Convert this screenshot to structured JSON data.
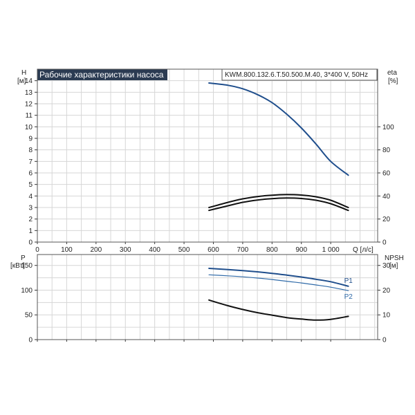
{
  "header": {
    "title": "Рабочие характеристики насоса",
    "model": "KWM.800.132.6.T.50.500.M.40, 3*400 V, 50Hz"
  },
  "colors": {
    "title_bg": "#2b3b52",
    "blue": "#1f4e8c",
    "blue_light": "#2f6aa8",
    "black": "#111111",
    "grid": "#d6d6d6"
  },
  "chart_data": [
    {
      "type": "line",
      "name": "top",
      "left_axis": {
        "label_1": "H",
        "label_2": "[м]",
        "ylim": [
          0,
          15
        ],
        "ticks": [
          "0",
          "1",
          "2",
          "3",
          "4",
          "5",
          "6",
          "7",
          "8",
          "9",
          "10",
          "11",
          "12",
          "13",
          "14"
        ],
        "tick_values": [
          0,
          1,
          2,
          3,
          4,
          5,
          6,
          7,
          8,
          9,
          10,
          11,
          12,
          13,
          14
        ]
      },
      "right_axis": {
        "label_1": "eta",
        "label_2": "[%]",
        "ylim": [
          0,
          150
        ],
        "ticks": [
          "0",
          "20",
          "40",
          "60",
          "80",
          "100"
        ],
        "tick_values": [
          0,
          20,
          40,
          60,
          80,
          100
        ]
      },
      "x_axis": {
        "label": "Q [л/с]",
        "xlim": [
          0,
          1160
        ],
        "ticks": [
          "0",
          "100",
          "200",
          "300",
          "400",
          "500",
          "600",
          "700",
          "800",
          "900",
          "1 000"
        ],
        "tick_values": [
          0,
          100,
          200,
          300,
          400,
          500,
          600,
          700,
          800,
          900,
          1000
        ]
      },
      "grid": true,
      "series": [
        {
          "axis": "left",
          "color": "blue",
          "x": [
            585,
            650,
            700,
            750,
            800,
            850,
            900,
            950,
            1000,
            1060
          ],
          "y": [
            13.8,
            13.6,
            13.3,
            12.8,
            12.1,
            11.1,
            9.9,
            8.5,
            7.0,
            5.8
          ]
        },
        {
          "axis": "right",
          "color": "black",
          "x": [
            585,
            650,
            700,
            750,
            800,
            850,
            900,
            950,
            1000,
            1060
          ],
          "y": [
            30,
            34.5,
            37.5,
            39.5,
            40.7,
            41.2,
            40.8,
            39.3,
            36.3,
            30
          ]
        },
        {
          "axis": "right",
          "color": "black",
          "x": [
            585,
            650,
            700,
            750,
            800,
            850,
            900,
            950,
            1000,
            1060
          ],
          "y": [
            27.5,
            31.5,
            34.5,
            36.5,
            37.7,
            38.2,
            37.8,
            36.3,
            33.3,
            27.5
          ]
        }
      ]
    },
    {
      "type": "line",
      "name": "bottom",
      "left_axis": {
        "label_1": "P",
        "label_2": "[кВт]",
        "ylim": [
          0,
          172
        ],
        "ticks": [
          "0",
          "50",
          "100",
          "150"
        ],
        "tick_values": [
          0,
          50,
          100,
          150
        ]
      },
      "right_axis": {
        "label_1": "NPSH",
        "label_2": "[м]",
        "ylim": [
          0,
          34.4
        ],
        "ticks": [
          "0",
          "10",
          "20",
          "30"
        ],
        "tick_values": [
          0,
          10,
          20,
          30
        ]
      },
      "x_axis": {
        "xlim": [
          0,
          1160
        ],
        "tick_values": [
          0,
          100,
          200,
          300,
          400,
          500,
          600,
          700,
          800,
          900,
          1000
        ]
      },
      "grid": true,
      "series": [
        {
          "axis": "left",
          "color": "blue",
          "name": "P1",
          "x": [
            585,
            650,
            700,
            750,
            800,
            850,
            900,
            950,
            1000,
            1060
          ],
          "y": [
            144,
            141.5,
            139.5,
            137,
            134,
            130.5,
            126.5,
            122,
            117,
            108
          ]
        },
        {
          "axis": "left",
          "color": "blue_light",
          "name": "P2",
          "x": [
            585,
            650,
            700,
            750,
            800,
            850,
            900,
            950,
            1000,
            1060
          ],
          "y": [
            131,
            129,
            127,
            124.5,
            121.5,
            118,
            114.5,
            110.5,
            106,
            99
          ]
        },
        {
          "axis": "right",
          "color": "black",
          "x": [
            585,
            650,
            700,
            750,
            800,
            850,
            900,
            950,
            1000,
            1060
          ],
          "y": [
            16,
            13.7,
            12.2,
            10.9,
            9.9,
            8.9,
            8.3,
            7.9,
            8.2,
            9.4
          ]
        }
      ]
    }
  ]
}
